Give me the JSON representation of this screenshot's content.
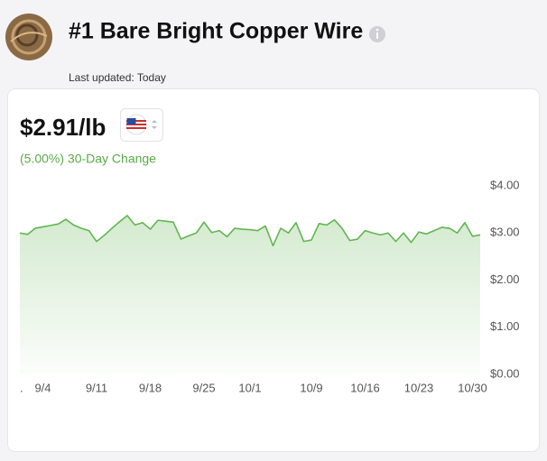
{
  "header": {
    "title": "#1 Bare Bright Copper Wire",
    "updated": "Last updated: Today"
  },
  "price": "$2.91/lb",
  "change": "(5.00%) 30-Day Change",
  "chart_data": {
    "type": "area",
    "color": "#62b552",
    "grid": false,
    "categories": [
      ".",
      null,
      null,
      "9/4",
      null,
      null,
      null,
      null,
      null,
      null,
      "9/11",
      null,
      null,
      null,
      null,
      null,
      null,
      "9/18",
      null,
      null,
      null,
      null,
      null,
      null,
      "9/25",
      null,
      null,
      null,
      null,
      null,
      "10/1",
      null,
      null,
      null,
      null,
      null,
      null,
      null,
      "10/9",
      null,
      null,
      null,
      null,
      null,
      null,
      "10/16",
      null,
      null,
      null,
      null,
      null,
      null,
      "10/23",
      null,
      null,
      null,
      null,
      null,
      null,
      "10/30",
      null
    ],
    "values": [
      3.0,
      2.97,
      3.1,
      3.13,
      3.16,
      3.19,
      3.29,
      3.17,
      3.1,
      3.05,
      2.82,
      2.95,
      3.1,
      3.24,
      3.37,
      3.17,
      3.22,
      3.08,
      3.27,
      3.25,
      3.23,
      2.87,
      2.94,
      3.0,
      3.23,
      3.01,
      3.05,
      2.92,
      3.1,
      3.08,
      3.07,
      3.05,
      3.15,
      2.73,
      3.1,
      3.0,
      3.22,
      2.82,
      2.85,
      3.2,
      3.17,
      3.28,
      3.1,
      2.84,
      2.87,
      3.05,
      3.0,
      2.96,
      3.0,
      2.82,
      3.0,
      2.8,
      3.02,
      2.98,
      3.05,
      3.12,
      3.1,
      3.0,
      3.22,
      2.93,
      2.96
    ],
    "ylim": [
      0,
      4
    ],
    "yticks": [
      {
        "value": 0,
        "label": "$0.00"
      },
      {
        "value": 1,
        "label": "$1.00"
      },
      {
        "value": 2,
        "label": "$2.00"
      },
      {
        "value": 3,
        "label": "$3.00"
      },
      {
        "value": 4,
        "label": "$4.00"
      }
    ]
  }
}
